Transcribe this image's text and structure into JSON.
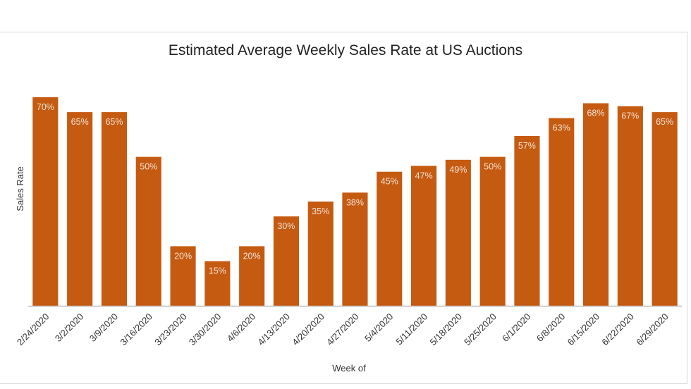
{
  "chart_data": {
    "type": "bar",
    "title": "Estimated Average Weekly Sales Rate at US Auctions",
    "xlabel": "Week of",
    "ylabel": "Sales Rate",
    "ylim": [
      0,
      70
    ],
    "grid": false,
    "legend": "none",
    "bar_color": "#c55a11",
    "categories": [
      "2/24/2020",
      "3/2/2020",
      "3/9/2020",
      "3/16/2020",
      "3/23/2020",
      "3/30/2020",
      "4/6/2020",
      "4/13/2020",
      "4/20/2020",
      "4/27/2020",
      "5/4/2020",
      "5/11/2020",
      "5/18/2020",
      "5/25/2020",
      "6/1/2020",
      "6/8/2020",
      "6/15/2020",
      "6/22/2020",
      "6/29/2020"
    ],
    "values": [
      70,
      65,
      65,
      50,
      20,
      15,
      20,
      30,
      35,
      38,
      45,
      47,
      49,
      50,
      57,
      63,
      68,
      67,
      65
    ],
    "data_labels": [
      "70%",
      "65%",
      "65%",
      "50%",
      "20%",
      "15%",
      "20%",
      "30%",
      "35%",
      "38%",
      "45%",
      "47%",
      "49%",
      "50%",
      "57%",
      "63%",
      "68%",
      "67%",
      "65%"
    ]
  }
}
